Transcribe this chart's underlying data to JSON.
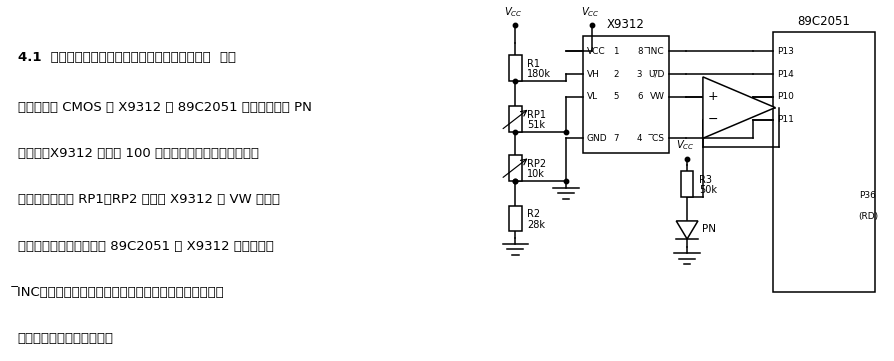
{
  "fig_w": 8.95,
  "fig_h": 3.61,
  "title": "4.1  固态非易失性精密电位器构成的温度测量电路  电路",
  "body": [
    "采用低功耗 CMOS 的 X9312 和 89C2051 及温度传感器 PN",
    "等构成。X9312 中含有 100 个电阵单元的电阵阵列。电路",
    "中，调节电位器 RP1、RP2 可改变 X9312 的 VW 输出电",
    "压，实现温度标定。通过 89C2051 将 X9312 的输出脉冲",
    "̅INC进行计数，并同温度传感器的检测信号电压进行比较",
    "判断后，得到被测温度値。"
  ],
  "vw_red_line_idx": 2,
  "vw_pre": "中，调节电位器 RP1、RP2 可改变 X9312 的 ",
  "vw_red": "VW ",
  "vw_post": "输出电"
}
